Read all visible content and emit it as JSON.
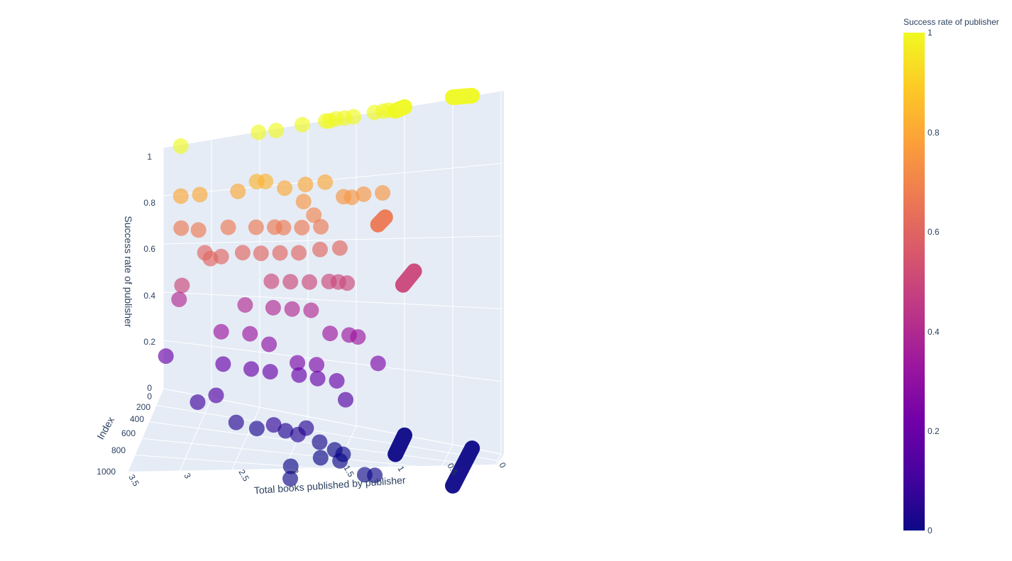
{
  "chart_data": {
    "type": "scatter3d",
    "title": "",
    "axes": {
      "x": {
        "label": "Total books published by publisher",
        "range": [
          0,
          3.5
        ],
        "ticks": [
          "3.5",
          "3",
          "2.5",
          "2",
          "1.5",
          "1",
          "0.5",
          "0"
        ]
      },
      "y": {
        "label": "Index",
        "range": [
          0,
          1000
        ],
        "ticks": [
          "0",
          "200",
          "400",
          "600",
          "800",
          "1000"
        ]
      },
      "z": {
        "label": "Success rate of publisher",
        "range": [
          0,
          1
        ],
        "ticks": [
          "0",
          "0.2",
          "0.4",
          "0.6",
          "0.8",
          "1"
        ]
      }
    },
    "colorbar": {
      "title": "Success rate of publisher",
      "ticks": [
        "0",
        "0.2",
        "0.4",
        "0.6",
        "0.8",
        "1"
      ],
      "colorscale": "plasma",
      "range": [
        0,
        1
      ]
    },
    "grid": true,
    "marker_opacity": 0.65,
    "lines": [
      {
        "x": 0.3,
        "y_range": [
          0,
          1000
        ],
        "z": 1
      },
      {
        "x": 1.0,
        "y_range": [
          0,
          400
        ],
        "z": 1
      },
      {
        "x": 0.3,
        "y_range": [
          0,
          1000
        ],
        "z": 0
      },
      {
        "x": 1.0,
        "y_range": [
          0,
          400
        ],
        "z": 0
      },
      {
        "x": 0.9,
        "y_range": [
          0,
          500
        ],
        "z": 0.5
      },
      {
        "x": 1.2,
        "y_range": [
          0,
          300
        ],
        "z": 0.667
      }
    ],
    "points": [
      {
        "x": 3.3,
        "y": 50,
        "z": 1
      },
      {
        "x": 2.5,
        "y": 40,
        "z": 1
      },
      {
        "x": 2.3,
        "y": 100,
        "z": 1
      },
      {
        "x": 2.05,
        "y": 30,
        "z": 1
      },
      {
        "x": 1.8,
        "y": 60,
        "z": 1
      },
      {
        "x": 1.75,
        "y": 90,
        "z": 1
      },
      {
        "x": 1.7,
        "y": 30,
        "z": 1
      },
      {
        "x": 1.6,
        "y": 80,
        "z": 1
      },
      {
        "x": 1.5,
        "y": 110,
        "z": 1
      },
      {
        "x": 1.2,
        "y": 80,
        "z": 1
      },
      {
        "x": 1.3,
        "y": 50,
        "z": 1
      },
      {
        "x": 1.15,
        "y": 60,
        "z": 1
      },
      {
        "x": 3.3,
        "y": 50,
        "z": 0.8
      },
      {
        "x": 3.1,
        "y": 60,
        "z": 0.8
      },
      {
        "x": 2.7,
        "y": 80,
        "z": 0.8
      },
      {
        "x": 2.5,
        "y": 100,
        "z": 0.83
      },
      {
        "x": 2.4,
        "y": 130,
        "z": 0.83
      },
      {
        "x": 2.2,
        "y": 140,
        "z": 0.8
      },
      {
        "x": 2.0,
        "y": 160,
        "z": 0.75
      },
      {
        "x": 2.0,
        "y": 90,
        "z": 0.8
      },
      {
        "x": 1.8,
        "y": 80,
        "z": 0.8
      },
      {
        "x": 1.6,
        "y": 120,
        "z": 0.75
      },
      {
        "x": 1.4,
        "y": 90,
        "z": 0.75
      },
      {
        "x": 1.2,
        "y": 110,
        "z": 0.75
      },
      {
        "x": 1.5,
        "y": 180,
        "z": 0.75
      },
      {
        "x": 1.9,
        "y": 140,
        "z": 0.7
      },
      {
        "x": 3.3,
        "y": 40,
        "z": 0.67
      },
      {
        "x": 3.1,
        "y": 100,
        "z": 0.67
      },
      {
        "x": 2.8,
        "y": 80,
        "z": 0.67
      },
      {
        "x": 2.5,
        "y": 120,
        "z": 0.67
      },
      {
        "x": 2.3,
        "y": 150,
        "z": 0.67
      },
      {
        "x": 2.2,
        "y": 180,
        "z": 0.67
      },
      {
        "x": 2.0,
        "y": 220,
        "z": 0.67
      },
      {
        "x": 1.8,
        "y": 240,
        "z": 0.67
      },
      {
        "x": 3.0,
        "y": 200,
        "z": 0.6
      },
      {
        "x": 2.8,
        "y": 300,
        "z": 0.6
      },
      {
        "x": 2.6,
        "y": 240,
        "z": 0.6
      },
      {
        "x": 2.4,
        "y": 280,
        "z": 0.6
      },
      {
        "x": 2.2,
        "y": 300,
        "z": 0.6
      },
      {
        "x": 2.0,
        "y": 330,
        "z": 0.6
      },
      {
        "x": 1.8,
        "y": 270,
        "z": 0.6
      },
      {
        "x": 1.6,
        "y": 260,
        "z": 0.6
      },
      {
        "x": 2.9,
        "y": 330,
        "z": 0.6
      },
      {
        "x": 3.2,
        "y": 300,
        "z": 0.5
      },
      {
        "x": 2.3,
        "y": 260,
        "z": 0.5
      },
      {
        "x": 2.1,
        "y": 280,
        "z": 0.5
      },
      {
        "x": 1.9,
        "y": 300,
        "z": 0.5
      },
      {
        "x": 1.7,
        "y": 300,
        "z": 0.5
      },
      {
        "x": 1.6,
        "y": 320,
        "z": 0.5
      },
      {
        "x": 1.5,
        "y": 360,
        "z": 0.5
      },
      {
        "x": 3.3,
        "y": 100,
        "z": 0.4
      },
      {
        "x": 2.6,
        "y": 160,
        "z": 0.4
      },
      {
        "x": 2.3,
        "y": 200,
        "z": 0.4
      },
      {
        "x": 2.1,
        "y": 220,
        "z": 0.4
      },
      {
        "x": 1.9,
        "y": 240,
        "z": 0.4
      },
      {
        "x": 1.7,
        "y": 260,
        "z": 0.33
      },
      {
        "x": 1.5,
        "y": 280,
        "z": 0.33
      },
      {
        "x": 1.4,
        "y": 320,
        "z": 0.33
      },
      {
        "x": 1.2,
        "y": 300,
        "z": 0.25
      },
      {
        "x": 2.8,
        "y": 300,
        "z": 0.33
      },
      {
        "x": 2.5,
        "y": 320,
        "z": 0.33
      },
      {
        "x": 2.3,
        "y": 340,
        "z": 0.3
      },
      {
        "x": 2.0,
        "y": 380,
        "z": 0.25
      },
      {
        "x": 1.8,
        "y": 400,
        "z": 0.25
      },
      {
        "x": 3.4,
        "y": 200,
        "z": 0.2
      },
      {
        "x": 2.8,
        "y": 240,
        "z": 0.2
      },
      {
        "x": 2.5,
        "y": 280,
        "z": 0.2
      },
      {
        "x": 2.3,
        "y": 300,
        "z": 0.2
      },
      {
        "x": 2.0,
        "y": 320,
        "z": 0.2
      },
      {
        "x": 1.8,
        "y": 360,
        "z": 0.2
      },
      {
        "x": 1.6,
        "y": 380,
        "z": 0.2
      },
      {
        "x": 1.5,
        "y": 420,
        "z": 0.15
      },
      {
        "x": 3.0,
        "y": 420,
        "z": 0.1
      },
      {
        "x": 2.8,
        "y": 460,
        "z": 0.14
      },
      {
        "x": 2.6,
        "y": 450,
        "z": 0.05
      },
      {
        "x": 2.4,
        "y": 420,
        "z": 0.03
      },
      {
        "x": 2.1,
        "y": 450,
        "z": 0.04
      },
      {
        "x": 1.9,
        "y": 420,
        "z": 0.05
      },
      {
        "x": 2.2,
        "y": 520,
        "z": 0.07
      },
      {
        "x": 1.95,
        "y": 540,
        "z": 0.05
      },
      {
        "x": 1.75,
        "y": 470,
        "z": 0.02
      },
      {
        "x": 1.6,
        "y": 460,
        "z": 0
      },
      {
        "x": 1.5,
        "y": 520,
        "z": 0
      },
      {
        "x": 1.7,
        "y": 620,
        "z": 0
      },
      {
        "x": 1.5,
        "y": 640,
        "z": 0
      },
      {
        "x": 1.95,
        "y": 800,
        "z": 0
      },
      {
        "x": 1.2,
        "y": 860,
        "z": 0
      },
      {
        "x": 1.1,
        "y": 860,
        "z": 0
      },
      {
        "x": 1.9,
        "y": 1000,
        "z": 0
      }
    ]
  }
}
